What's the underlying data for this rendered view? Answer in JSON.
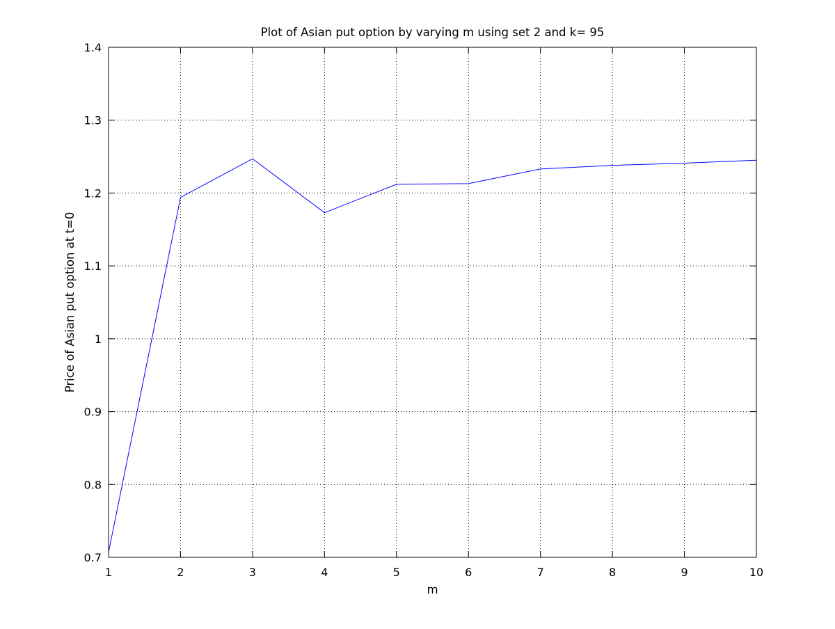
{
  "chart_data": {
    "type": "line",
    "title": "Plot of Asian put option by varying m using set 2 and k= 95",
    "xlabel": "m",
    "ylabel": "Price of Asian put option at t=0",
    "xlim": [
      1,
      10
    ],
    "ylim": [
      0.7,
      1.4
    ],
    "xticks": [
      1,
      2,
      3,
      4,
      5,
      6,
      7,
      8,
      9,
      10
    ],
    "xtick_labels": [
      "1",
      "2",
      "3",
      "4",
      "5",
      "6",
      "7",
      "8",
      "9",
      "10"
    ],
    "yticks": [
      0.7,
      0.8,
      0.9,
      1.0,
      1.1,
      1.2,
      1.3,
      1.4
    ],
    "ytick_labels": [
      "0.7",
      "0.8",
      "0.9",
      "1",
      "1.1",
      "1.2",
      "1.3",
      "1.4"
    ],
    "grid": true,
    "series": [
      {
        "color": "#0000ff",
        "x": [
          1,
          2,
          3,
          4,
          5,
          6,
          7,
          8,
          9,
          10
        ],
        "y": [
          0.707,
          1.194,
          1.247,
          1.173,
          1.212,
          1.213,
          1.233,
          1.238,
          1.241,
          1.245
        ]
      }
    ]
  }
}
